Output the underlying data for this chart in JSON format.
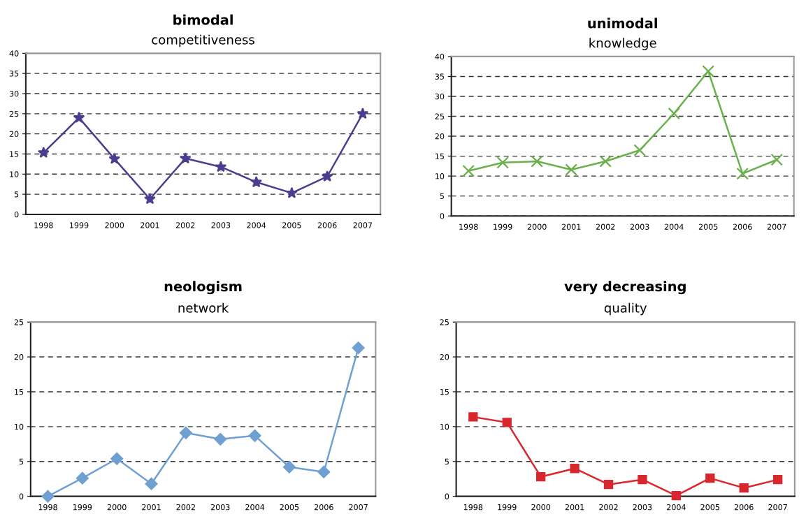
{
  "chart_data": [
    {
      "type": "line",
      "title": "bimodal",
      "subtitle": "competitiveness",
      "categories": [
        "1998",
        "1999",
        "2000",
        "2001",
        "2002",
        "2003",
        "2004",
        "2005",
        "2006",
        "2007"
      ],
      "series": [
        {
          "color": "#4b3d8f",
          "values": [
            15.3,
            24,
            13.8,
            3.8,
            13.9,
            11.8,
            8,
            5.3,
            9.4,
            25
          ]
        }
      ],
      "marker": "star",
      "ylim": [
        0,
        40
      ],
      "yticks": [
        0,
        5,
        10,
        15,
        20,
        25,
        30,
        35,
        40
      ],
      "grid": "y"
    },
    {
      "type": "line",
      "title": "unimodal",
      "subtitle": "knowledge",
      "categories": [
        "1998",
        "1999",
        "2000",
        "2001",
        "2002",
        "2003",
        "2004",
        "2005",
        "2006",
        "2007"
      ],
      "series": [
        {
          "color": "#6ab04c",
          "values": [
            11.3,
            13.4,
            13.7,
            11.6,
            13.7,
            16.5,
            25.7,
            36.3,
            10.6,
            14.1
          ]
        }
      ],
      "marker": "cross",
      "ylim": [
        0,
        40
      ],
      "yticks": [
        0,
        5,
        10,
        15,
        20,
        25,
        30,
        35,
        40
      ],
      "grid": "y"
    },
    {
      "type": "line",
      "title": "neologism",
      "subtitle": "network",
      "categories": [
        "1998",
        "1999",
        "2000",
        "2001",
        "2002",
        "2003",
        "2004",
        "2005",
        "2006",
        "2007"
      ],
      "series": [
        {
          "color": "#6fa0d2",
          "values": [
            0,
            2.6,
            5.4,
            1.8,
            9.1,
            8.2,
            8.7,
            4.2,
            3.5,
            21.3
          ]
        }
      ],
      "marker": "diamond",
      "ylim": [
        0,
        25
      ],
      "yticks": [
        0,
        5,
        10,
        15,
        20,
        25
      ],
      "grid": "y"
    },
    {
      "type": "line",
      "title": "very decreasing",
      "subtitle": "quality",
      "categories": [
        "1998",
        "1999",
        "2000",
        "2001",
        "2002",
        "2003",
        "2004",
        "2005",
        "2006",
        "2007"
      ],
      "series": [
        {
          "color": "#d9272e",
          "values": [
            11.4,
            10.6,
            2.8,
            4.0,
            1.7,
            2.4,
            0.1,
            2.6,
            1.2,
            2.4
          ]
        }
      ],
      "marker": "square",
      "ylim": [
        0,
        25
      ],
      "yticks": [
        0,
        5,
        10,
        15,
        20,
        25
      ],
      "grid": "y"
    }
  ]
}
